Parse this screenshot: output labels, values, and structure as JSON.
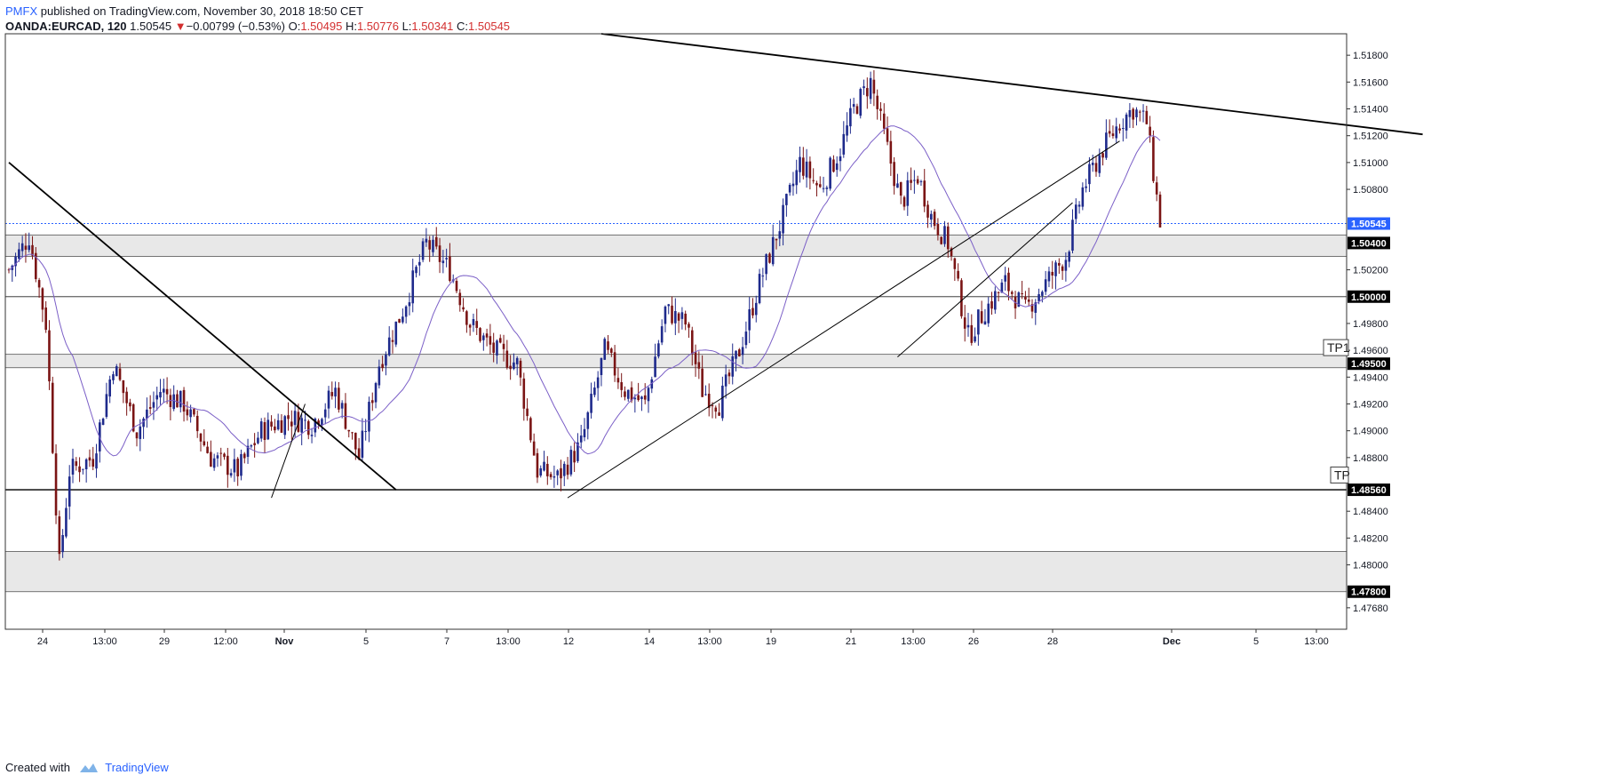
{
  "header": {
    "brand": "PMFX",
    "published_text": " published on TradingView.com, November 30, 2018 18:50 CET"
  },
  "symbol": {
    "name": "OANDA:EURCAD, 120",
    "last": "1.50545",
    "change_arrow": "▼",
    "change": "−0.00799 (−0.53%)",
    "o_label": "O:",
    "o": "1.50495",
    "h_label": "H:",
    "h": "1.50776",
    "l_label": "L:",
    "l": "1.50341",
    "c_label": "C:",
    "c": "1.50545"
  },
  "footer": {
    "created_with": "Created with",
    "brand": "TradingView",
    "logo_icon": "tradingview-logo-icon"
  },
  "colors": {
    "bull": "#1e2a8c",
    "bear": "#7a1414",
    "ma": "#7b5fc7",
    "last_price": "#2962ff",
    "zone": "#e8e8e8",
    "axis_text": "#131722"
  },
  "chart_data": {
    "type": "candlestick",
    "symbol": "OANDA:EURCAD",
    "interval": "120",
    "ylim": [
      1.4752,
      1.5196
    ],
    "y_ticks": [
      "1.51800",
      "1.51600",
      "1.51400",
      "1.51200",
      "1.51000",
      "1.50800",
      "1.50200",
      "1.49800",
      "1.49600",
      "1.49400",
      "1.49200",
      "1.49000",
      "1.48800",
      "1.48400",
      "1.48200",
      "1.48000",
      "1.47680"
    ],
    "x_ticks": [
      "24",
      "13:00",
      "29",
      "12:00",
      "Nov",
      "5",
      "7",
      "13:00",
      "12",
      "14",
      "13:00",
      "19",
      "21",
      "13:00",
      "26",
      "28",
      "Dec",
      "5",
      "13:00"
    ],
    "price_labels": [
      {
        "text": "1.50545",
        "price": 1.50545,
        "kind": "last"
      },
      {
        "text": "1.50400",
        "price": 1.504,
        "kind": "level"
      },
      {
        "text": "1.50000",
        "price": 1.5,
        "kind": "level"
      },
      {
        "text": "1.49500",
        "price": 1.495,
        "kind": "level"
      },
      {
        "text": "1.48560",
        "price": 1.4856,
        "kind": "level"
      },
      {
        "text": "1.47800",
        "price": 1.478,
        "kind": "level"
      }
    ],
    "annotations": [
      {
        "text": "TP1",
        "price": 1.4962
      },
      {
        "text": "TP",
        "price": 1.4867
      }
    ],
    "zones": [
      [
        1.503,
        1.5046
      ],
      [
        1.4947,
        1.4957
      ],
      [
        1.478,
        1.481
      ]
    ],
    "levels": [
      1.5,
      1.4856
    ],
    "close_path": [
      [
        0,
        1.502
      ],
      [
        6,
        1.5045
      ],
      [
        11,
        1.498
      ],
      [
        15,
        1.48
      ],
      [
        18,
        1.487
      ],
      [
        25,
        1.488
      ],
      [
        31,
        1.495
      ],
      [
        38,
        1.49
      ],
      [
        45,
        1.493
      ],
      [
        52,
        1.492
      ],
      [
        60,
        1.488
      ],
      [
        68,
        1.487
      ],
      [
        75,
        1.49
      ],
      [
        83,
        1.491
      ],
      [
        90,
        1.4905
      ],
      [
        97,
        1.493
      ],
      [
        104,
        1.488
      ],
      [
        110,
        1.495
      ],
      [
        117,
        1.499
      ],
      [
        124,
        1.504
      ],
      [
        131,
        1.502
      ],
      [
        137,
        1.498
      ],
      [
        144,
        1.496
      ],
      [
        151,
        1.495
      ],
      [
        157,
        1.487
      ],
      [
        163,
        1.4865
      ],
      [
        170,
        1.489
      ],
      [
        177,
        1.496
      ],
      [
        183,
        1.493
      ],
      [
        189,
        1.492
      ],
      [
        195,
        1.499
      ],
      [
        201,
        1.498
      ],
      [
        206,
        1.493
      ],
      [
        211,
        1.492
      ],
      [
        217,
        1.496
      ],
      [
        223,
        1.501
      ],
      [
        230,
        1.506
      ],
      [
        235,
        1.51
      ],
      [
        241,
        1.508
      ],
      [
        247,
        1.511
      ],
      [
        251,
        1.514
      ],
      [
        256,
        1.516
      ],
      [
        260,
        1.512
      ],
      [
        265,
        1.507
      ],
      [
        270,
        1.509
      ],
      [
        274,
        1.506
      ],
      [
        279,
        1.504
      ],
      [
        285,
        1.497
      ],
      [
        290,
        1.499
      ],
      [
        296,
        1.501
      ],
      [
        302,
        1.499
      ],
      [
        308,
        1.501
      ],
      [
        314,
        1.503
      ],
      [
        319,
        1.508
      ],
      [
        325,
        1.511
      ],
      [
        330,
        1.513
      ],
      [
        334,
        1.514
      ],
      [
        338,
        1.513
      ],
      [
        342,
        1.5055
      ]
    ],
    "drawn_lines": [
      {
        "from": [
          176,
          1.5196
        ],
        "to": [
          420,
          1.5121
        ]
      },
      {
        "from": [
          0,
          1.51
        ],
        "to": [
          115,
          1.4856
        ]
      },
      {
        "from": [
          78,
          1.485
        ],
        "to": [
          88,
          1.492
        ]
      },
      {
        "from": [
          166,
          1.485
        ],
        "to": [
          330,
          1.5116
        ]
      },
      {
        "from": [
          264,
          1.4955
        ],
        "to": [
          316,
          1.507
        ]
      }
    ]
  }
}
